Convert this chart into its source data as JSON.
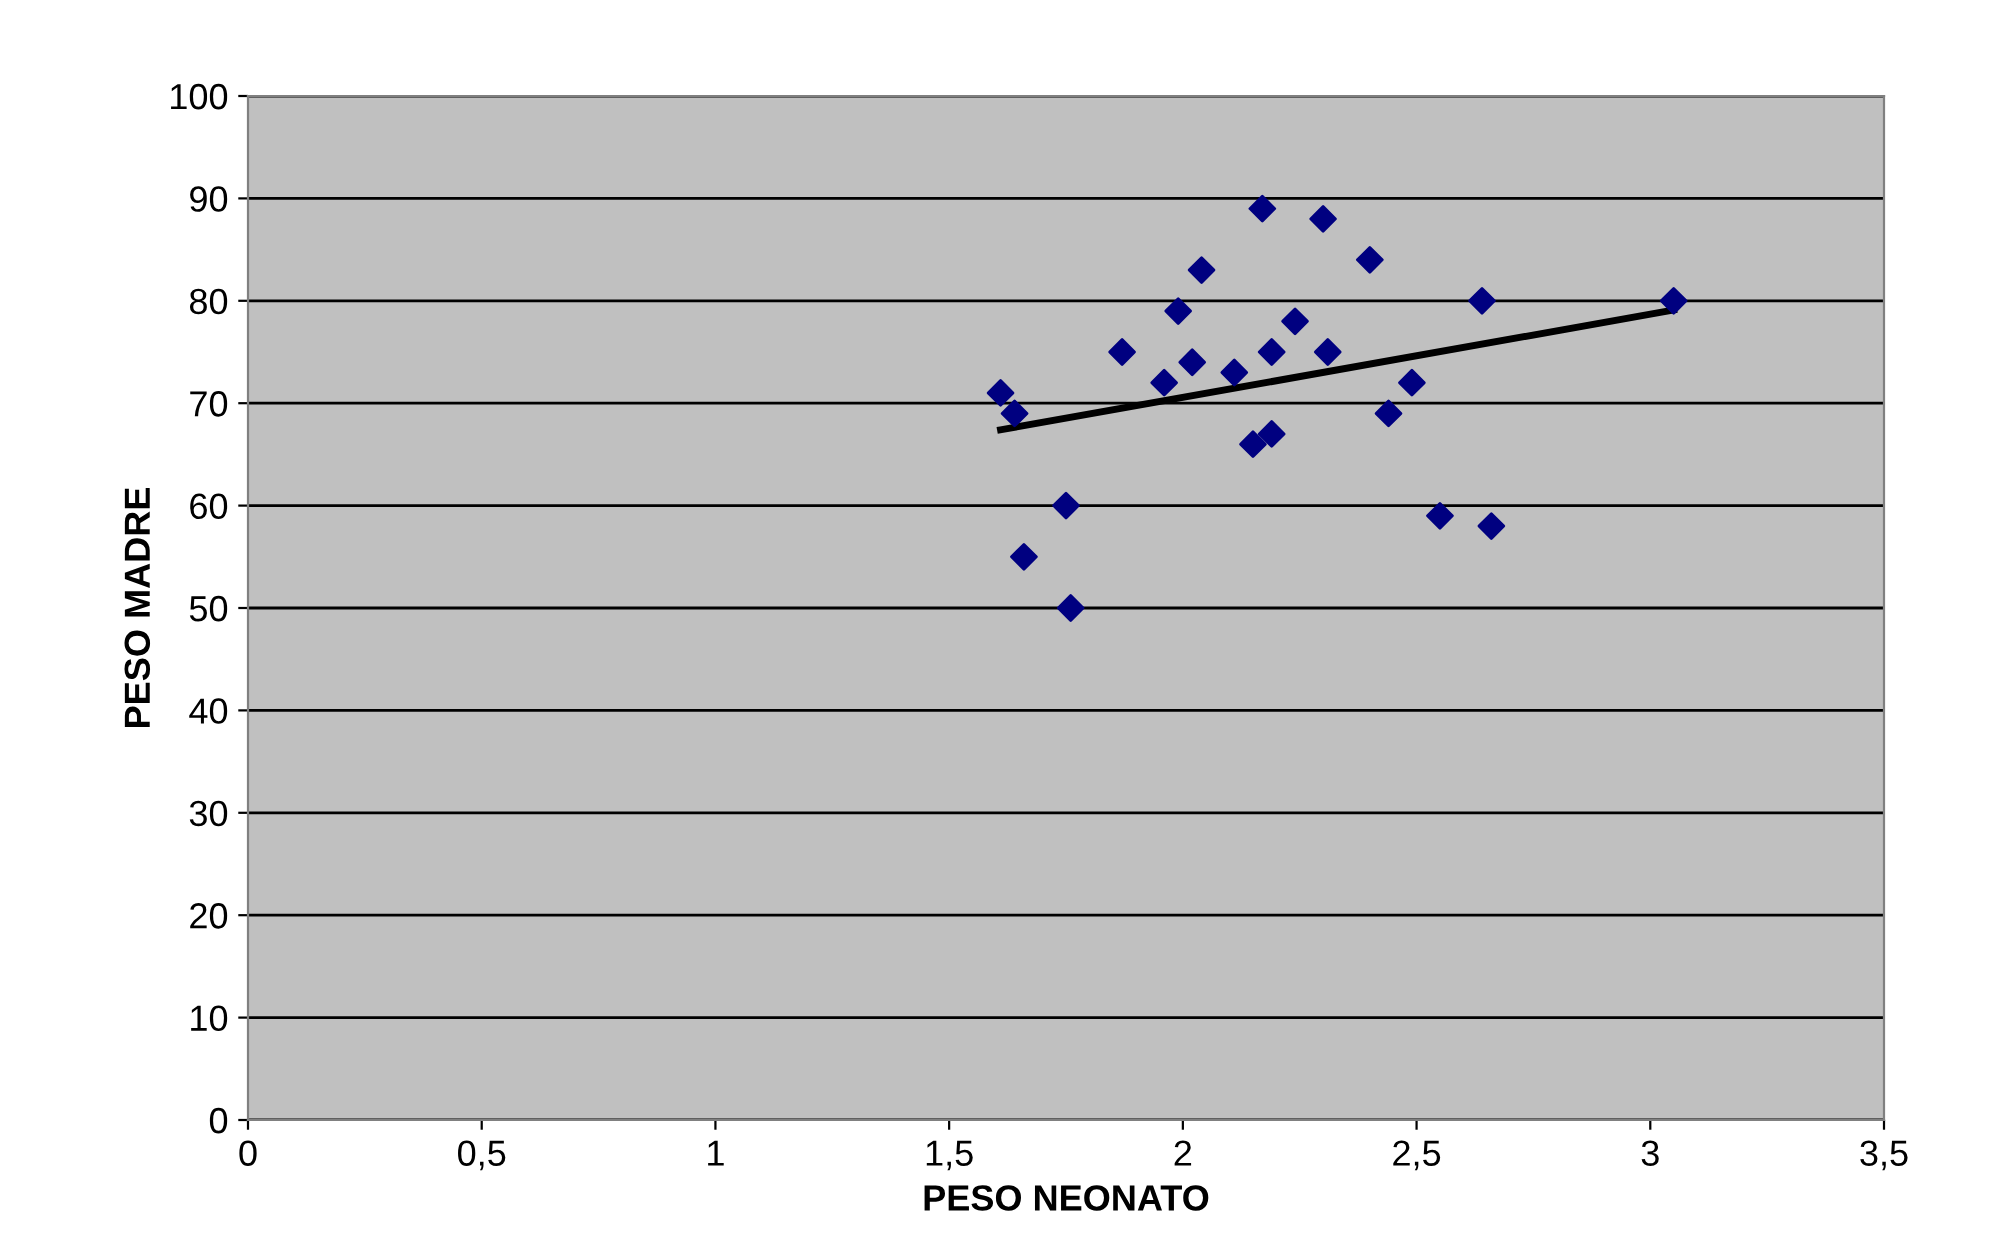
{
  "chart_data": {
    "type": "scatter",
    "xlabel": "PESO NEONATO",
    "ylabel": "PESO MADRE",
    "xlim": [
      0,
      3.5
    ],
    "ylim": [
      0,
      100
    ],
    "xticks": [
      0,
      {
        "value": 0.5,
        "label": "0,5"
      },
      1,
      {
        "value": 1.5,
        "label": "1,5"
      },
      2,
      {
        "value": 2.5,
        "label": "2,5"
      },
      3,
      {
        "value": 3.5,
        "label": "3,5"
      }
    ],
    "yticks": [
      0,
      10,
      20,
      30,
      40,
      50,
      60,
      70,
      80,
      90,
      100
    ],
    "grid": "y",
    "series": [
      {
        "color": "#000080",
        "marker": "diamond",
        "x": [
          1.61,
          1.64,
          1.66,
          1.75,
          1.76,
          1.87,
          1.96,
          1.99,
          2.02,
          2.04,
          2.11,
          2.15,
          2.17,
          2.19,
          2.19,
          2.24,
          2.3,
          2.31,
          2.4,
          2.44,
          2.49,
          2.55,
          2.64,
          2.66,
          3.05
        ],
        "values": [
          71,
          69,
          55,
          60,
          50,
          75,
          72,
          79,
          74,
          83,
          73,
          66,
          89,
          75,
          67,
          78,
          88,
          75,
          84,
          69,
          72,
          59,
          80,
          58,
          80
        ]
      },
      {
        "type": "line",
        "color": "#000000",
        "marker": "none",
        "line_style": "solid",
        "x": [
          1.61,
          3.05
        ],
        "values": [
          67.4,
          79.1
        ]
      }
    ]
  }
}
